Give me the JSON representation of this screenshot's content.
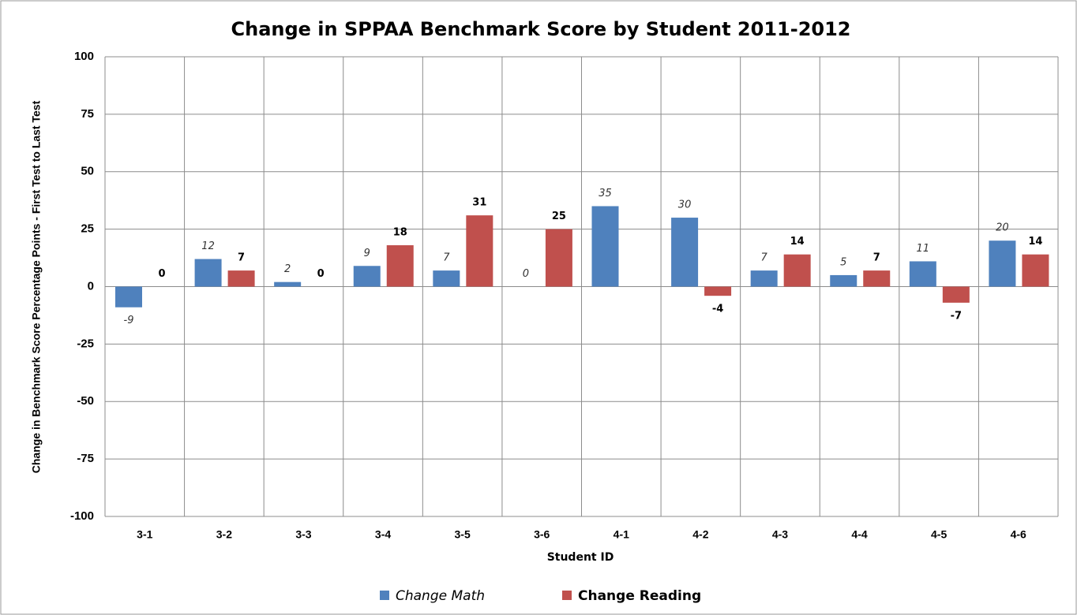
{
  "chart_data": {
    "type": "bar",
    "title": "Change in SPPAA Benchmark Score by Student 2011-2012",
    "x_label": "Student ID",
    "y_label": "Change in Benchmark Score Percentage Points - First Test to Last Test",
    "categories": [
      "3-1",
      "3-2",
      "3-3",
      "3-4",
      "3-5",
      "3-6",
      "4-1",
      "4-2",
      "4-3",
      "4-4",
      "4-5",
      "4-6"
    ],
    "series": [
      {
        "name": "Change Math",
        "color": "#4f81bd",
        "values": [
          -9,
          12,
          2,
          9,
          7,
          0,
          35,
          30,
          7,
          5,
          11,
          20
        ]
      },
      {
        "name": "Change Reading",
        "color": "#c0504d",
        "values": [
          0,
          7,
          0,
          18,
          31,
          25,
          null,
          -4,
          14,
          7,
          -7,
          14
        ]
      }
    ],
    "ylim": [
      -100,
      100
    ],
    "yticks": [
      -100,
      -75,
      -50,
      -25,
      0,
      25,
      50,
      75,
      100
    ],
    "grid": true,
    "legend": "bottom"
  }
}
